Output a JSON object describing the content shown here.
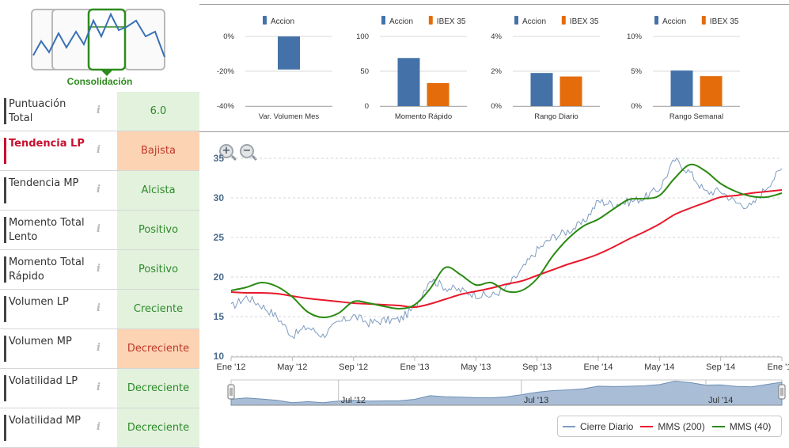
{
  "logo": {
    "title": "Consolidación"
  },
  "indicators": [
    {
      "label": "Puntuación Total",
      "value": "6.0",
      "status": "green",
      "alert": false
    },
    {
      "label": "Tendencia LP",
      "value": "Bajista",
      "status": "orange",
      "alert": true
    },
    {
      "label": "Tendencia MP",
      "value": "Alcista",
      "status": "green",
      "alert": false
    },
    {
      "label": "Momento Total Lento",
      "value": "Positivo",
      "status": "green",
      "alert": false
    },
    {
      "label": "Momento Total Rápido",
      "value": "Positivo",
      "status": "green",
      "alert": false
    },
    {
      "label": "Volumen LP",
      "value": "Creciente",
      "status": "green",
      "alert": false
    },
    {
      "label": "Volumen MP",
      "value": "Decreciente",
      "status": "orange",
      "alert": false
    },
    {
      "label": "Volatilidad LP",
      "value": "Decreciente",
      "status": "green",
      "alert": false
    },
    {
      "label": "Volatilidad MP",
      "value": "Decreciente",
      "status": "green",
      "alert": false
    }
  ],
  "info_icon": "i",
  "colors": {
    "accion": "#4472a8",
    "ibex": "#e46c0a",
    "cierre": "#7e9cc0",
    "mms200": "#e8192c",
    "mms40": "#2a8a12",
    "green_bg": "#e2f2dd",
    "orange_bg": "#fcd4b3"
  },
  "chart_data": [
    {
      "type": "bar",
      "title": "Var. Volumen Mes",
      "series": [
        {
          "name": "Accion",
          "values": [
            -19
          ]
        }
      ],
      "yticks": [
        "0%",
        "-20%",
        "-40%"
      ],
      "ylim": [
        -40,
        0
      ]
    },
    {
      "type": "bar",
      "title": "Momento Rápido",
      "series": [
        {
          "name": "Accion",
          "values": [
            69
          ]
        },
        {
          "name": "IBEX 35",
          "values": [
            33
          ]
        }
      ],
      "yticks": [
        "100",
        "50",
        "0"
      ],
      "ylim": [
        0,
        100
      ]
    },
    {
      "type": "bar",
      "title": "Rango Diario",
      "series": [
        {
          "name": "Accion",
          "values": [
            1.9
          ]
        },
        {
          "name": "IBEX 35",
          "values": [
            1.7
          ]
        }
      ],
      "yticks": [
        "4%",
        "2%",
        "0%"
      ],
      "ylim": [
        0,
        4
      ]
    },
    {
      "type": "bar",
      "title": "Rango Semanal",
      "series": [
        {
          "name": "Accion",
          "values": [
            5.1
          ]
        },
        {
          "name": "IBEX 35",
          "values": [
            4.3
          ]
        }
      ],
      "yticks": [
        "10%",
        "5%",
        "0%"
      ],
      "ylim": [
        0,
        10
      ]
    },
    {
      "type": "line",
      "ylim": [
        10,
        35
      ],
      "yticks": [
        "10",
        "15",
        "20",
        "25",
        "30",
        "35"
      ],
      "xticks": [
        "Ene '12",
        "May '12",
        "Sep '12",
        "Ene '13",
        "May '13",
        "Sep '13",
        "Ene '14",
        "May '14",
        "Sep '14",
        "Ene '15"
      ],
      "x": [
        0,
        1,
        2,
        3,
        4,
        5,
        6,
        7,
        8,
        9,
        10,
        11,
        12,
        13,
        14,
        15,
        16,
        17,
        18,
        19,
        20,
        21,
        22,
        23,
        24,
        25,
        26,
        27,
        28,
        29,
        30,
        31,
        32,
        33,
        34,
        35,
        36
      ],
      "series": [
        {
          "name": "Cierre Diario",
          "values": [
            16.2,
            17.5,
            16.4,
            15.0,
            12.6,
            13.7,
            12.6,
            14.2,
            15.1,
            14.2,
            14.5,
            14.6,
            16.1,
            19.8,
            18.7,
            18.3,
            17.8,
            17.6,
            18.6,
            20.9,
            23.4,
            25.0,
            25.8,
            26.8,
            29.6,
            29.2,
            29.5,
            30.0,
            31.2,
            34.8,
            33.2,
            30.7,
            30.9,
            29.4,
            28.9,
            31.4,
            33.7
          ]
        },
        {
          "name": "MMS (200)",
          "values": [
            18.1,
            18.0,
            18.0,
            17.9,
            17.6,
            17.3,
            17.1,
            16.9,
            16.7,
            16.6,
            16.5,
            16.4,
            16.2,
            16.6,
            17.2,
            17.8,
            18.2,
            18.6,
            19.1,
            19.5,
            20.2,
            20.9,
            21.6,
            22.2,
            22.9,
            23.8,
            24.8,
            25.7,
            26.7,
            27.9,
            28.7,
            29.4,
            30.1,
            30.3,
            30.6,
            30.8,
            31.0
          ]
        },
        {
          "name": "MMS (40)",
          "values": [
            18.3,
            18.7,
            19.3,
            18.8,
            17.5,
            15.6,
            14.9,
            15.4,
            16.9,
            16.7,
            16.3,
            16.0,
            16.5,
            18.5,
            21.2,
            20.3,
            19.0,
            19.3,
            18.2,
            18.3,
            19.8,
            22.6,
            24.8,
            26.4,
            27.3,
            28.6,
            29.8,
            29.9,
            30.3,
            32.5,
            34.2,
            33.4,
            31.8,
            30.8,
            30.2,
            30.1,
            30.6
          ]
        }
      ]
    }
  ],
  "navigator": {
    "labels": [
      "Jul '12",
      "Jul '13",
      "Jul '14"
    ]
  },
  "legend": [
    {
      "name": "Cierre Diario",
      "color": "#7e9cc0"
    },
    {
      "name": "MMS (200)",
      "color": "#e8192c"
    },
    {
      "name": "MMS (40)",
      "color": "#2a8a12"
    }
  ]
}
